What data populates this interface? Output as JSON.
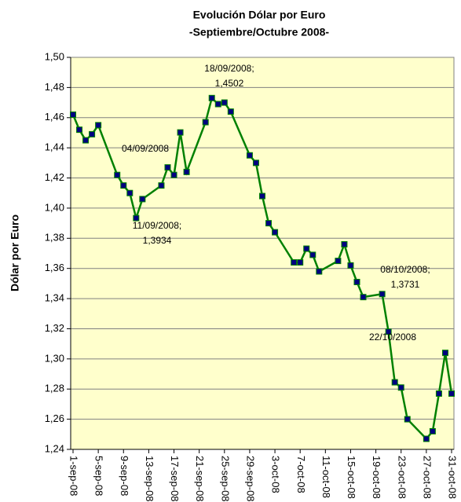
{
  "chart_data": {
    "type": "line",
    "title": "Evolución Dólar por Euro",
    "subtitle": "-Septiembre/Octubre 2008-",
    "y_label": "Dólar por Euro",
    "x": [
      "2008-09-01",
      "2008-09-02",
      "2008-09-03",
      "2008-09-04",
      "2008-09-05",
      "2008-09-08",
      "2008-09-09",
      "2008-09-10",
      "2008-09-11",
      "2008-09-12",
      "2008-09-15",
      "2008-09-16",
      "2008-09-17",
      "2008-09-18",
      "2008-09-19",
      "2008-09-22",
      "2008-09-23",
      "2008-09-24",
      "2008-09-25",
      "2008-09-26",
      "2008-09-29",
      "2008-09-30",
      "2008-10-01",
      "2008-10-02",
      "2008-10-03",
      "2008-10-06",
      "2008-10-07",
      "2008-10-08",
      "2008-10-09",
      "2008-10-10",
      "2008-10-13",
      "2008-10-14",
      "2008-10-15",
      "2008-10-16",
      "2008-10-17",
      "2008-10-20",
      "2008-10-21",
      "2008-10-22",
      "2008-10-23",
      "2008-10-24",
      "2008-10-27",
      "2008-10-28",
      "2008-10-29",
      "2008-10-30",
      "2008-10-31"
    ],
    "series": [
      {
        "name": "Dólar por Euro",
        "color": "#008000",
        "marker_color": "#000080",
        "values": [
          1.462,
          1.452,
          1.445,
          1.449,
          1.455,
          1.422,
          1.415,
          1.41,
          1.3934,
          1.406,
          1.415,
          1.427,
          1.422,
          1.4502,
          1.424,
          1.457,
          1.473,
          1.469,
          1.47,
          1.464,
          1.435,
          1.43,
          1.408,
          1.39,
          1.384,
          1.364,
          1.364,
          1.3731,
          1.369,
          1.358,
          1.365,
          1.376,
          1.362,
          1.351,
          1.341,
          1.343,
          1.318,
          1.2845,
          1.281,
          1.26,
          1.247,
          1.252,
          1.277,
          1.304,
          1.277
        ]
      }
    ],
    "annotations": [
      {
        "lines": [
          "18/09/2008;",
          "1,4502"
        ]
      },
      {
        "lines": [
          "04/09/2008"
        ]
      },
      {
        "lines": [
          "11/09/2008;",
          "1,3934"
        ]
      },
      {
        "lines": [
          "08/10/2008;",
          "1,3731"
        ]
      },
      {
        "lines": [
          "22/10/2008"
        ]
      }
    ],
    "xlim": [
      "2008-09-01",
      "2008-10-31"
    ],
    "xticks": [
      {
        "value": "2008-09-01",
        "label": "1-sep-08"
      },
      {
        "value": "2008-09-05",
        "label": "5-sep-08"
      },
      {
        "value": "2008-09-09",
        "label": "9-sep-08"
      },
      {
        "value": "2008-09-13",
        "label": "13-sep-08"
      },
      {
        "value": "2008-09-17",
        "label": "17-sep-08"
      },
      {
        "value": "2008-09-21",
        "label": "21-sep-08"
      },
      {
        "value": "2008-09-25",
        "label": "25-sep-08"
      },
      {
        "value": "2008-09-29",
        "label": "29-sep-08"
      },
      {
        "value": "2008-10-03",
        "label": "3-oct-08"
      },
      {
        "value": "2008-10-07",
        "label": "7-oct-08"
      },
      {
        "value": "2008-10-11",
        "label": "11-oct-08"
      },
      {
        "value": "2008-10-15",
        "label": "15-oct-08"
      },
      {
        "value": "2008-10-19",
        "label": "19-oct-08"
      },
      {
        "value": "2008-10-23",
        "label": "23-oct-08"
      },
      {
        "value": "2008-10-27",
        "label": "27-oct-08"
      },
      {
        "value": "2008-10-31",
        "label": "31-oct-08"
      }
    ],
    "ylim": [
      1.24,
      1.5
    ],
    "yticks": [
      {
        "value": 1.24,
        "label": "1,24"
      },
      {
        "value": 1.26,
        "label": "1,26"
      },
      {
        "value": 1.28,
        "label": "1,28"
      },
      {
        "value": 1.3,
        "label": "1,30"
      },
      {
        "value": 1.32,
        "label": "1,32"
      },
      {
        "value": 1.34,
        "label": "1,34"
      },
      {
        "value": 1.36,
        "label": "1,36"
      },
      {
        "value": 1.38,
        "label": "1,38"
      },
      {
        "value": 1.4,
        "label": "1,40"
      },
      {
        "value": 1.42,
        "label": "1,42"
      },
      {
        "value": 1.44,
        "label": "1,44"
      },
      {
        "value": 1.46,
        "label": "1,46"
      },
      {
        "value": 1.48,
        "label": "1,48"
      },
      {
        "value": 1.5,
        "label": "1,50"
      }
    ],
    "grid": true,
    "plot_background": "#ffffcc"
  }
}
